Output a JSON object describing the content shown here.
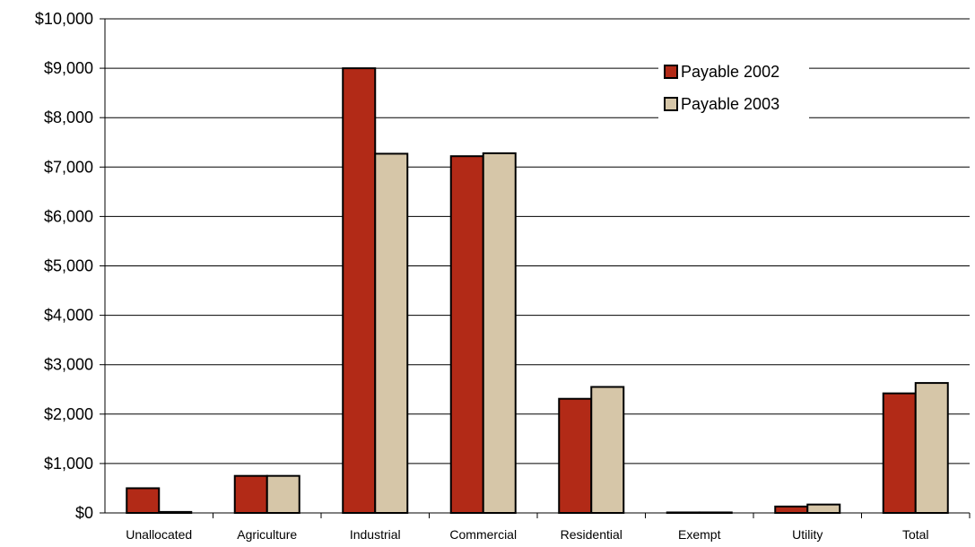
{
  "chart_data": {
    "type": "bar",
    "categories": [
      "Unallocated",
      "Agriculture",
      "Industrial",
      "Commercial",
      "Residential",
      "Exempt",
      "Utility",
      "Total"
    ],
    "series": [
      {
        "name": "Payable 2002",
        "color": "#b22a17",
        "values": [
          500,
          750,
          9000,
          7220,
          2310,
          10,
          130,
          2420
        ]
      },
      {
        "name": "Payable 2003",
        "color": "#d6c6a8",
        "values": [
          20,
          750,
          7270,
          7280,
          2550,
          10,
          170,
          2630
        ]
      }
    ],
    "y_ticks": [
      "$0",
      "$1,000",
      "$2,000",
      "$3,000",
      "$4,000",
      "$5,000",
      "$6,000",
      "$7,000",
      "$8,000",
      "$9,000",
      "$10,000"
    ],
    "ylim": [
      0,
      10000
    ],
    "grid": true,
    "legend_position": "top-right"
  }
}
